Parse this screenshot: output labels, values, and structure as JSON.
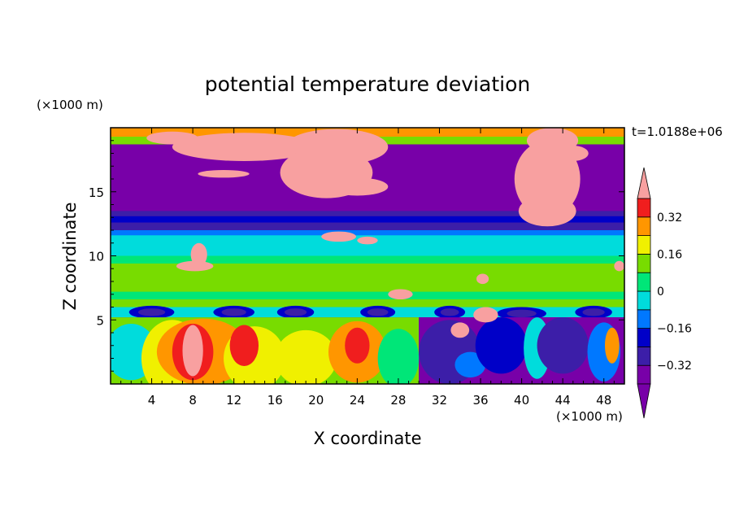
{
  "chart_data": {
    "type": "heatmap",
    "title": "potential temperature deviation",
    "xlabel": "X coordinate",
    "ylabel": "Z coordinate",
    "x_units": "(×1000 m)",
    "y_units": "(×1000 m)",
    "time_label": "t=1.0188e+06",
    "xlim": [
      0,
      50
    ],
    "ylim": [
      0,
      20
    ],
    "x_ticks": [
      4,
      8,
      12,
      16,
      20,
      24,
      28,
      32,
      36,
      40,
      44,
      48
    ],
    "x_tick_labels": [
      "4",
      "8",
      "12",
      "16",
      "20",
      "24",
      "28",
      "32",
      "36",
      "40",
      "44",
      "48"
    ],
    "y_ticks": [
      5,
      10,
      15
    ],
    "y_tick_labels": [
      "5",
      "10",
      "15"
    ],
    "colorbar": {
      "levels": [
        -0.4,
        -0.32,
        -0.24,
        -0.16,
        -0.08,
        0,
        0.08,
        0.16,
        0.24,
        0.32,
        0.4
      ],
      "labeled_levels": [
        0.32,
        0.16,
        0,
        -0.16,
        -0.32
      ],
      "labels": [
        "0.32",
        "0.16",
        "0",
        "−0.16",
        "−0.32"
      ],
      "colors": [
        "#7800a8",
        "#3c1ea8",
        "#0000c8",
        "#0078ff",
        "#00dcdc",
        "#00e678",
        "#78dc00",
        "#f0f000",
        "#ff9600",
        "#f01e1e",
        "#f8a0a0"
      ],
      "extend": "both"
    },
    "layers": [
      {
        "z_range": [
          17,
          20
        ],
        "pattern": "deep purple (−0.4) with large pink (+0.4) cloud regions"
      },
      {
        "z_range": [
          12,
          13.5
        ],
        "pattern": "dark blue band (−0.32)"
      },
      {
        "z_range": [
          10,
          12
        ],
        "pattern": "cyan (−0.08)"
      },
      {
        "z_range": [
          6,
          10
        ],
        "pattern": "green (0 to 0.08) with pink patches"
      },
      {
        "z_range": [
          5,
          6
        ],
        "pattern": "blue band with dark blue ovals (−0.16 to −0.32)"
      },
      {
        "z_range": [
          0,
          5
        ],
        "pattern": "warm (0.16 to 0.4) for x<28, cold (−0.32 to −0.4) for x>30"
      }
    ]
  }
}
